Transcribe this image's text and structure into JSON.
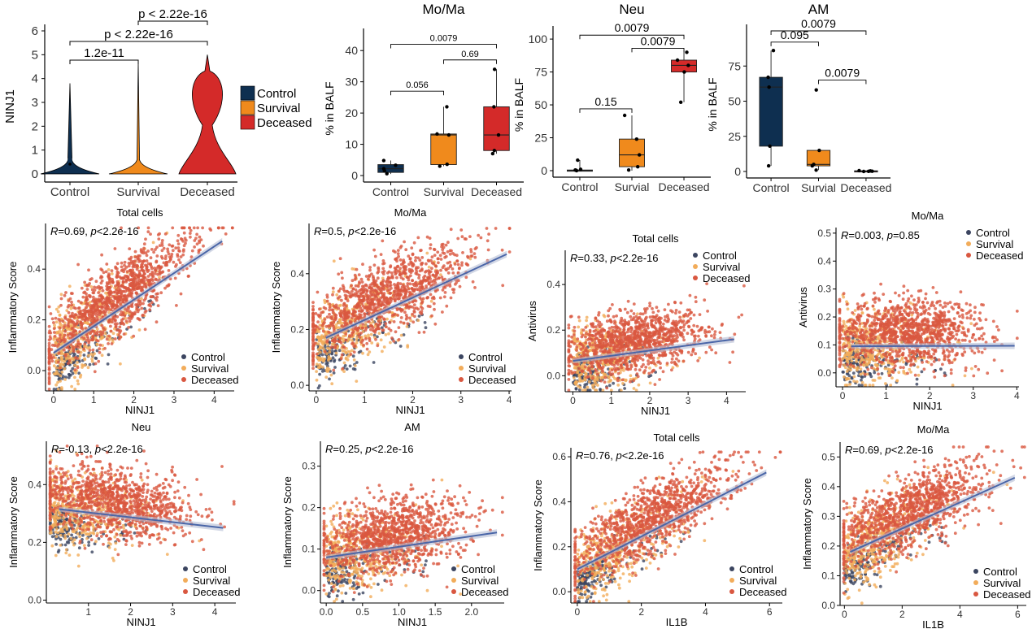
{
  "colors": {
    "control": "#0e2f50",
    "survival": "#f08a1c",
    "deceased": "#d42a29",
    "control_pt": "#3b4560",
    "survival_pt": "#f2ac5a",
    "deceased_pt": "#d95740",
    "fit_line": "#4a66a8",
    "fit_band": "#b4bcd4"
  },
  "chart_data": [
    {
      "id": "violin",
      "type": "violin",
      "ylabel": "NINJ1",
      "categories": [
        "Control",
        "Survival",
        "Deceased"
      ],
      "ylim": [
        0,
        6
      ],
      "yticks": [
        "0",
        "1",
        "2",
        "3",
        "4",
        "5",
        "6"
      ],
      "max": [
        3.8,
        4.7,
        5.0
      ],
      "comparisons": [
        {
          "between": [
            "Control",
            "Survival"
          ],
          "label": "1.2e-11"
        },
        {
          "between": [
            "Control",
            "Deceased"
          ],
          "label": "p < 2.22e-16"
        },
        {
          "between": [
            "Survival",
            "Deceased"
          ],
          "label": "p < 2.22e-16"
        }
      ],
      "legend": [
        "Control",
        "Survival",
        "Deceased"
      ]
    },
    {
      "id": "box_moma",
      "type": "box",
      "title": "Mo/Ma",
      "ylabel": "% in BALF",
      "ylim": [
        0,
        45
      ],
      "yticks": [
        0,
        10,
        20,
        30,
        40
      ],
      "categories": [
        "Control",
        "Survival",
        "Deceased"
      ],
      "boxes": [
        {
          "q1": 1.0,
          "med": 2.2,
          "q3": 3.5,
          "lo": 0.5,
          "hi": 4.8,
          "points": [
            0.6,
            1.5,
            2.2,
            3.3,
            4.8
          ]
        },
        {
          "q1": 3.5,
          "med": 13.0,
          "q3": 13.3,
          "lo": 3.0,
          "hi": 22.0,
          "points": [
            3.0,
            3.6,
            13.0,
            13.3,
            22.0
          ]
        },
        {
          "q1": 8.0,
          "med": 13.0,
          "q3": 22.0,
          "lo": 7.0,
          "hi": 34.0,
          "points": [
            7.0,
            8.0,
            13.0,
            22.0,
            34.0
          ]
        }
      ],
      "comparisons": [
        {
          "between": [
            0,
            1
          ],
          "label": "0.056",
          "y": 27
        },
        {
          "between": [
            1,
            2
          ],
          "label": "0.69",
          "y": 37
        },
        {
          "between": [
            0,
            2
          ],
          "label": "0.0079",
          "y": 42
        }
      ]
    },
    {
      "id": "box_neu",
      "type": "box",
      "title": "Neu",
      "ylabel": "% in BALF",
      "ylim": [
        0,
        105
      ],
      "yticks": [
        0,
        25,
        50,
        75,
        100
      ],
      "categories": [
        "Control",
        "Survial",
        "Deceased"
      ],
      "boxes": [
        {
          "q1": 0.0,
          "med": 0.0,
          "q3": 0.5,
          "lo": 0.0,
          "hi": 8.0,
          "points": [
            0.0,
            0.3,
            0.5,
            1.0,
            8.0
          ]
        },
        {
          "q1": 3.0,
          "med": 12.0,
          "q3": 24.0,
          "lo": 0.0,
          "hi": 42.0,
          "points": [
            0.5,
            3.0,
            12.0,
            24.0,
            42.0
          ]
        },
        {
          "q1": 75.0,
          "med": 80.0,
          "q3": 84.0,
          "lo": 52.0,
          "hi": 90.0,
          "points": [
            52.0,
            75.0,
            80.0,
            84.0,
            90.0
          ]
        }
      ],
      "comparisons": [
        {
          "between": [
            0,
            1
          ],
          "label": "0.15",
          "y": 47
        },
        {
          "between": [
            1,
            2
          ],
          "label": "0.0079",
          "y": 93
        },
        {
          "between": [
            0,
            2
          ],
          "label": "0.0079",
          "y": 103
        }
      ]
    },
    {
      "id": "box_am",
      "type": "box",
      "title": "AM",
      "ylabel": "% in BALF",
      "ylim": [
        0,
        100
      ],
      "yticks": [
        0,
        25,
        50,
        75
      ],
      "categories": [
        "Control",
        "Survial",
        "Deceased"
      ],
      "boxes": [
        {
          "q1": 18.0,
          "med": 60.0,
          "q3": 67.0,
          "lo": 4.0,
          "hi": 86.0,
          "points": [
            4.0,
            18.0,
            60.0,
            67.0,
            86.0
          ]
        },
        {
          "q1": 4.0,
          "med": 5.0,
          "q3": 15.0,
          "lo": 1.0,
          "hi": 15.0,
          "points": [
            1.0,
            4.0,
            5.0,
            15.0,
            58.0
          ]
        },
        {
          "q1": 0.0,
          "med": 0.2,
          "q3": 0.5,
          "lo": 0.0,
          "hi": 0.6,
          "points": [
            0.0,
            0.1,
            0.2,
            0.4,
            0.6
          ]
        }
      ],
      "comparisons": [
        {
          "between": [
            0,
            1
          ],
          "label": "0.095",
          "y": 92
        },
        {
          "between": [
            1,
            2
          ],
          "label": "0.0079",
          "y": 65
        },
        {
          "between": [
            0,
            2
          ],
          "label": "0.0079",
          "y": 100
        }
      ]
    },
    {
      "id": "sc_total_ninj1",
      "type": "scatter",
      "title": "Total cells",
      "xlabel": "NINJ1",
      "ylabel": "Inflammatory Score",
      "xlim": [
        -0.2,
        4.5
      ],
      "ylim": [
        -0.08,
        0.58
      ],
      "xticks": [
        0,
        1,
        2,
        3,
        4
      ],
      "yticks": [
        0.0,
        0.2,
        0.4
      ],
      "stat_R": "0.69",
      "stat_p": "<2.2e-16",
      "fit": [
        [
          0,
          0.07
        ],
        [
          4.2,
          0.51
        ]
      ],
      "legend_position": "bottom-right",
      "legend": [
        "Control",
        "Survival",
        "Deceased"
      ]
    },
    {
      "id": "sc_moma_ninj1",
      "type": "scatter",
      "title": "Mo/Ma",
      "xlabel": "NINJ1",
      "ylabel": "Inflammatory Score",
      "xlim": [
        -0.15,
        4.05
      ],
      "ylim": [
        -0.02,
        0.58
      ],
      "xticks": [
        0,
        1,
        2,
        3,
        4
      ],
      "yticks": [
        0.0,
        0.2,
        0.4
      ],
      "stat_R": "0.5",
      "stat_p": "<2.2e-16",
      "fit": [
        [
          0.2,
          0.17
        ],
        [
          3.95,
          0.47
        ]
      ],
      "legend_position": "bottom-right",
      "legend": [
        "Control",
        "Survival",
        "Deceased"
      ]
    },
    {
      "id": "sc_total_antivirus",
      "type": "scatter",
      "title": "Total cells",
      "xlabel": "NINJ1",
      "ylabel": "Antivirus",
      "xlim": [
        -0.2,
        4.5
      ],
      "ylim": [
        -0.07,
        0.55
      ],
      "xticks": [
        0,
        1,
        2,
        3,
        4
      ],
      "yticks": [
        0.0,
        0.2,
        0.4
      ],
      "stat_R": "0.33",
      "stat_p": "<2.2e-16",
      "fit": [
        [
          0,
          0.065
        ],
        [
          4.2,
          0.16
        ]
      ],
      "legend_position": "top-right",
      "legend": [
        "Control",
        "Survival",
        "Deceased"
      ]
    },
    {
      "id": "sc_moma_antivirus",
      "type": "scatter",
      "title": "Mo/Ma",
      "xlabel": "NINJ1",
      "ylabel": "Antivirus",
      "xlim": [
        -0.15,
        4.05
      ],
      "ylim": [
        -0.05,
        0.52
      ],
      "xticks": [
        0,
        1,
        2,
        3,
        4
      ],
      "yticks": [
        0.0,
        0.1,
        0.2,
        0.3,
        0.4,
        0.5
      ],
      "stat_R": "0.003",
      "stat_p": "=0.85",
      "fit": [
        [
          0.2,
          0.095
        ],
        [
          3.95,
          0.097
        ]
      ],
      "legend_position": "top-right",
      "legend": [
        "Control",
        "Survival",
        "Deceased"
      ]
    },
    {
      "id": "sc_neu_ninj1",
      "type": "scatter",
      "title": "Neu",
      "xlabel": "NINJ1",
      "ylabel": "Inflammatory Score",
      "xlim": [
        0.0,
        4.5
      ],
      "ylim": [
        -0.01,
        0.55
      ],
      "xticks": [
        1,
        2,
        3,
        4
      ],
      "yticks": [
        0.0,
        0.2,
        0.4
      ],
      "stat_R": "-0.13",
      "stat_p": "<2.2e-16",
      "fit": [
        [
          0.3,
          0.315
        ],
        [
          4.2,
          0.25
        ]
      ],
      "legend_position": "bottom-right",
      "legend": [
        "Control",
        "Survival",
        "Deceased"
      ]
    },
    {
      "id": "sc_am_ninj1",
      "type": "scatter",
      "title": "AM",
      "xlabel": "NINJ1",
      "ylabel": "Inflammatory Score",
      "xlim": [
        -0.08,
        2.45
      ],
      "ylim": [
        -0.03,
        0.36
      ],
      "xticks": [
        0.0,
        0.5,
        1.0,
        1.5,
        2.0
      ],
      "yticks": [
        0.0,
        0.1,
        0.2,
        0.3
      ],
      "stat_R": "0.25",
      "stat_p": "<2.2e-16",
      "fit": [
        [
          0,
          0.08
        ],
        [
          2.35,
          0.14
        ]
      ],
      "legend_position": "bottom-right",
      "legend": [
        "Control",
        "Survival",
        "Deceased"
      ]
    },
    {
      "id": "sc_total_il1b",
      "type": "scatter",
      "title": "Total cells",
      "xlabel": "IL1B",
      "ylabel": "Inflammatory Score",
      "xlim": [
        -0.2,
        6.4
      ],
      "ylim": [
        -0.05,
        0.64
      ],
      "xticks": [
        0,
        2,
        4,
        6
      ],
      "yticks": [
        0.0,
        0.2,
        0.4,
        0.6
      ],
      "stat_R": "0.76",
      "stat_p": "<2.2e-16",
      "fit": [
        [
          0,
          0.1
        ],
        [
          5.9,
          0.53
        ]
      ],
      "legend_position": "bottom-right",
      "legend": [
        "Control",
        "Survival",
        "Deceased"
      ]
    },
    {
      "id": "sc_moma_il1b",
      "type": "scatter",
      "title": "Mo/Ma",
      "xlabel": "IL1B",
      "ylabel": "Inflammatory Score",
      "xlim": [
        -0.15,
        6.3
      ],
      "ylim": [
        0.0,
        0.55
      ],
      "xticks": [
        0,
        2,
        4,
        6
      ],
      "yticks": [
        0.0,
        0.1,
        0.2,
        0.3,
        0.4,
        0.5
      ],
      "stat_R": "0.69",
      "stat_p": "<2.2e-16",
      "fit": [
        [
          0.2,
          0.18
        ],
        [
          5.9,
          0.43
        ]
      ],
      "legend_position": "bottom-right",
      "legend": [
        "Control",
        "Survival",
        "Deceased"
      ]
    }
  ]
}
